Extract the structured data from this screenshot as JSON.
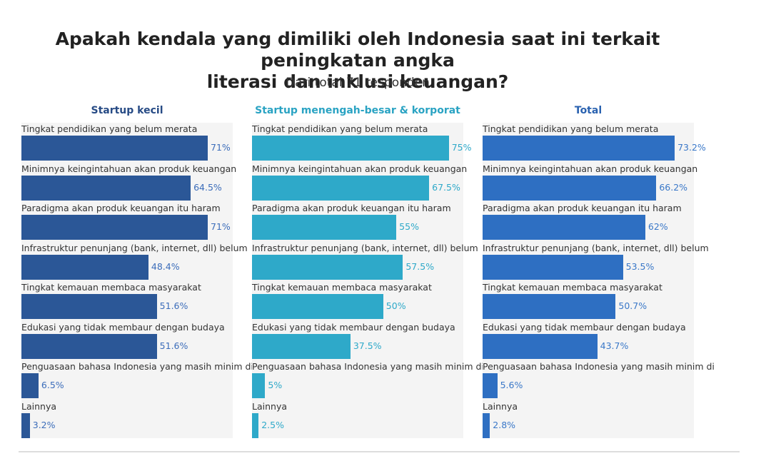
{
  "header": {
    "title_line1": "Apakah kendala yang dimiliki oleh Indonesia saat ini terkait peningkatan angka",
    "title_line2": "literasi dan inklusi keuangan?",
    "subtitle": "Dari total 71 responden"
  },
  "chart_data": [
    {
      "type": "bar",
      "orientation": "horizontal",
      "title": "Startup kecil",
      "color": "#2b5797",
      "value_color": "#3c6dba",
      "title_color": "#274b85",
      "xlim": [
        0,
        72
      ],
      "categories": [
        "Tingkat pendidikan yang belum merata",
        "Minimnya keingintahuan akan produk keuangan",
        "Paradigma akan produk keuangan itu haram",
        "Infrastruktur penunjang (bank, internet, dll) belum",
        "Tingkat kemauan membaca masyarakat",
        "Edukasi yang tidak membaur dengan budaya",
        "Penguasaan bahasa Indonesia yang masih minim di",
        "Lainnya"
      ],
      "values": [
        71,
        64.5,
        71,
        48.4,
        51.6,
        51.6,
        6.5,
        3.2
      ],
      "labels": [
        "71%",
        "64.5%",
        "71%",
        "48.4%",
        "51.6%",
        "51.6%",
        "6.5%",
        "3.2%"
      ]
    },
    {
      "type": "bar",
      "orientation": "horizontal",
      "title": "Startup menengah-besar & korporat",
      "color": "#2ea9c9",
      "value_color": "#2ea9c9",
      "title_color": "#2aa3c3",
      "xlim": [
        0,
        72
      ],
      "categories": [
        "Tingkat pendidikan yang belum merata",
        "Minimnya keingintahuan akan produk keuangan",
        "Paradigma akan produk keuangan itu haram",
        "Infrastruktur penunjang (bank, internet, dll) belum",
        "Tingkat kemauan membaca masyarakat",
        "Edukasi yang tidak membaur dengan budaya",
        "Penguasaan bahasa Indonesia yang masih minim di",
        "Lainnya"
      ],
      "values": [
        75,
        67.5,
        55,
        57.5,
        50,
        37.5,
        5,
        2.5
      ],
      "labels": [
        "75%",
        "67.5%",
        "55%",
        "57.5%",
        "50%",
        "37.5%",
        "5%",
        "2.5%"
      ]
    },
    {
      "type": "bar",
      "orientation": "horizontal",
      "title": "Total",
      "color": "#2e6fc2",
      "value_color": "#3a78c8",
      "title_color": "#2a62b0",
      "xlim": [
        0,
        72
      ],
      "categories": [
        "Tingkat pendidikan yang belum merata",
        "Minimnya keingintahuan akan produk keuangan",
        "Paradigma akan produk keuangan itu haram",
        "Infrastruktur penunjang (bank, internet, dll) belum",
        "Tingkat kemauan membaca masyarakat",
        "Edukasi yang tidak membaur dengan budaya",
        "Penguasaan bahasa Indonesia yang masih minim di",
        "Lainnya"
      ],
      "values": [
        73.2,
        66.2,
        62,
        53.5,
        50.7,
        43.7,
        5.6,
        2.8
      ],
      "labels": [
        "73.2%",
        "66.2%",
        "62%",
        "53.5%",
        "50.7%",
        "43.7%",
        "5.6%",
        "2.8%"
      ]
    }
  ]
}
